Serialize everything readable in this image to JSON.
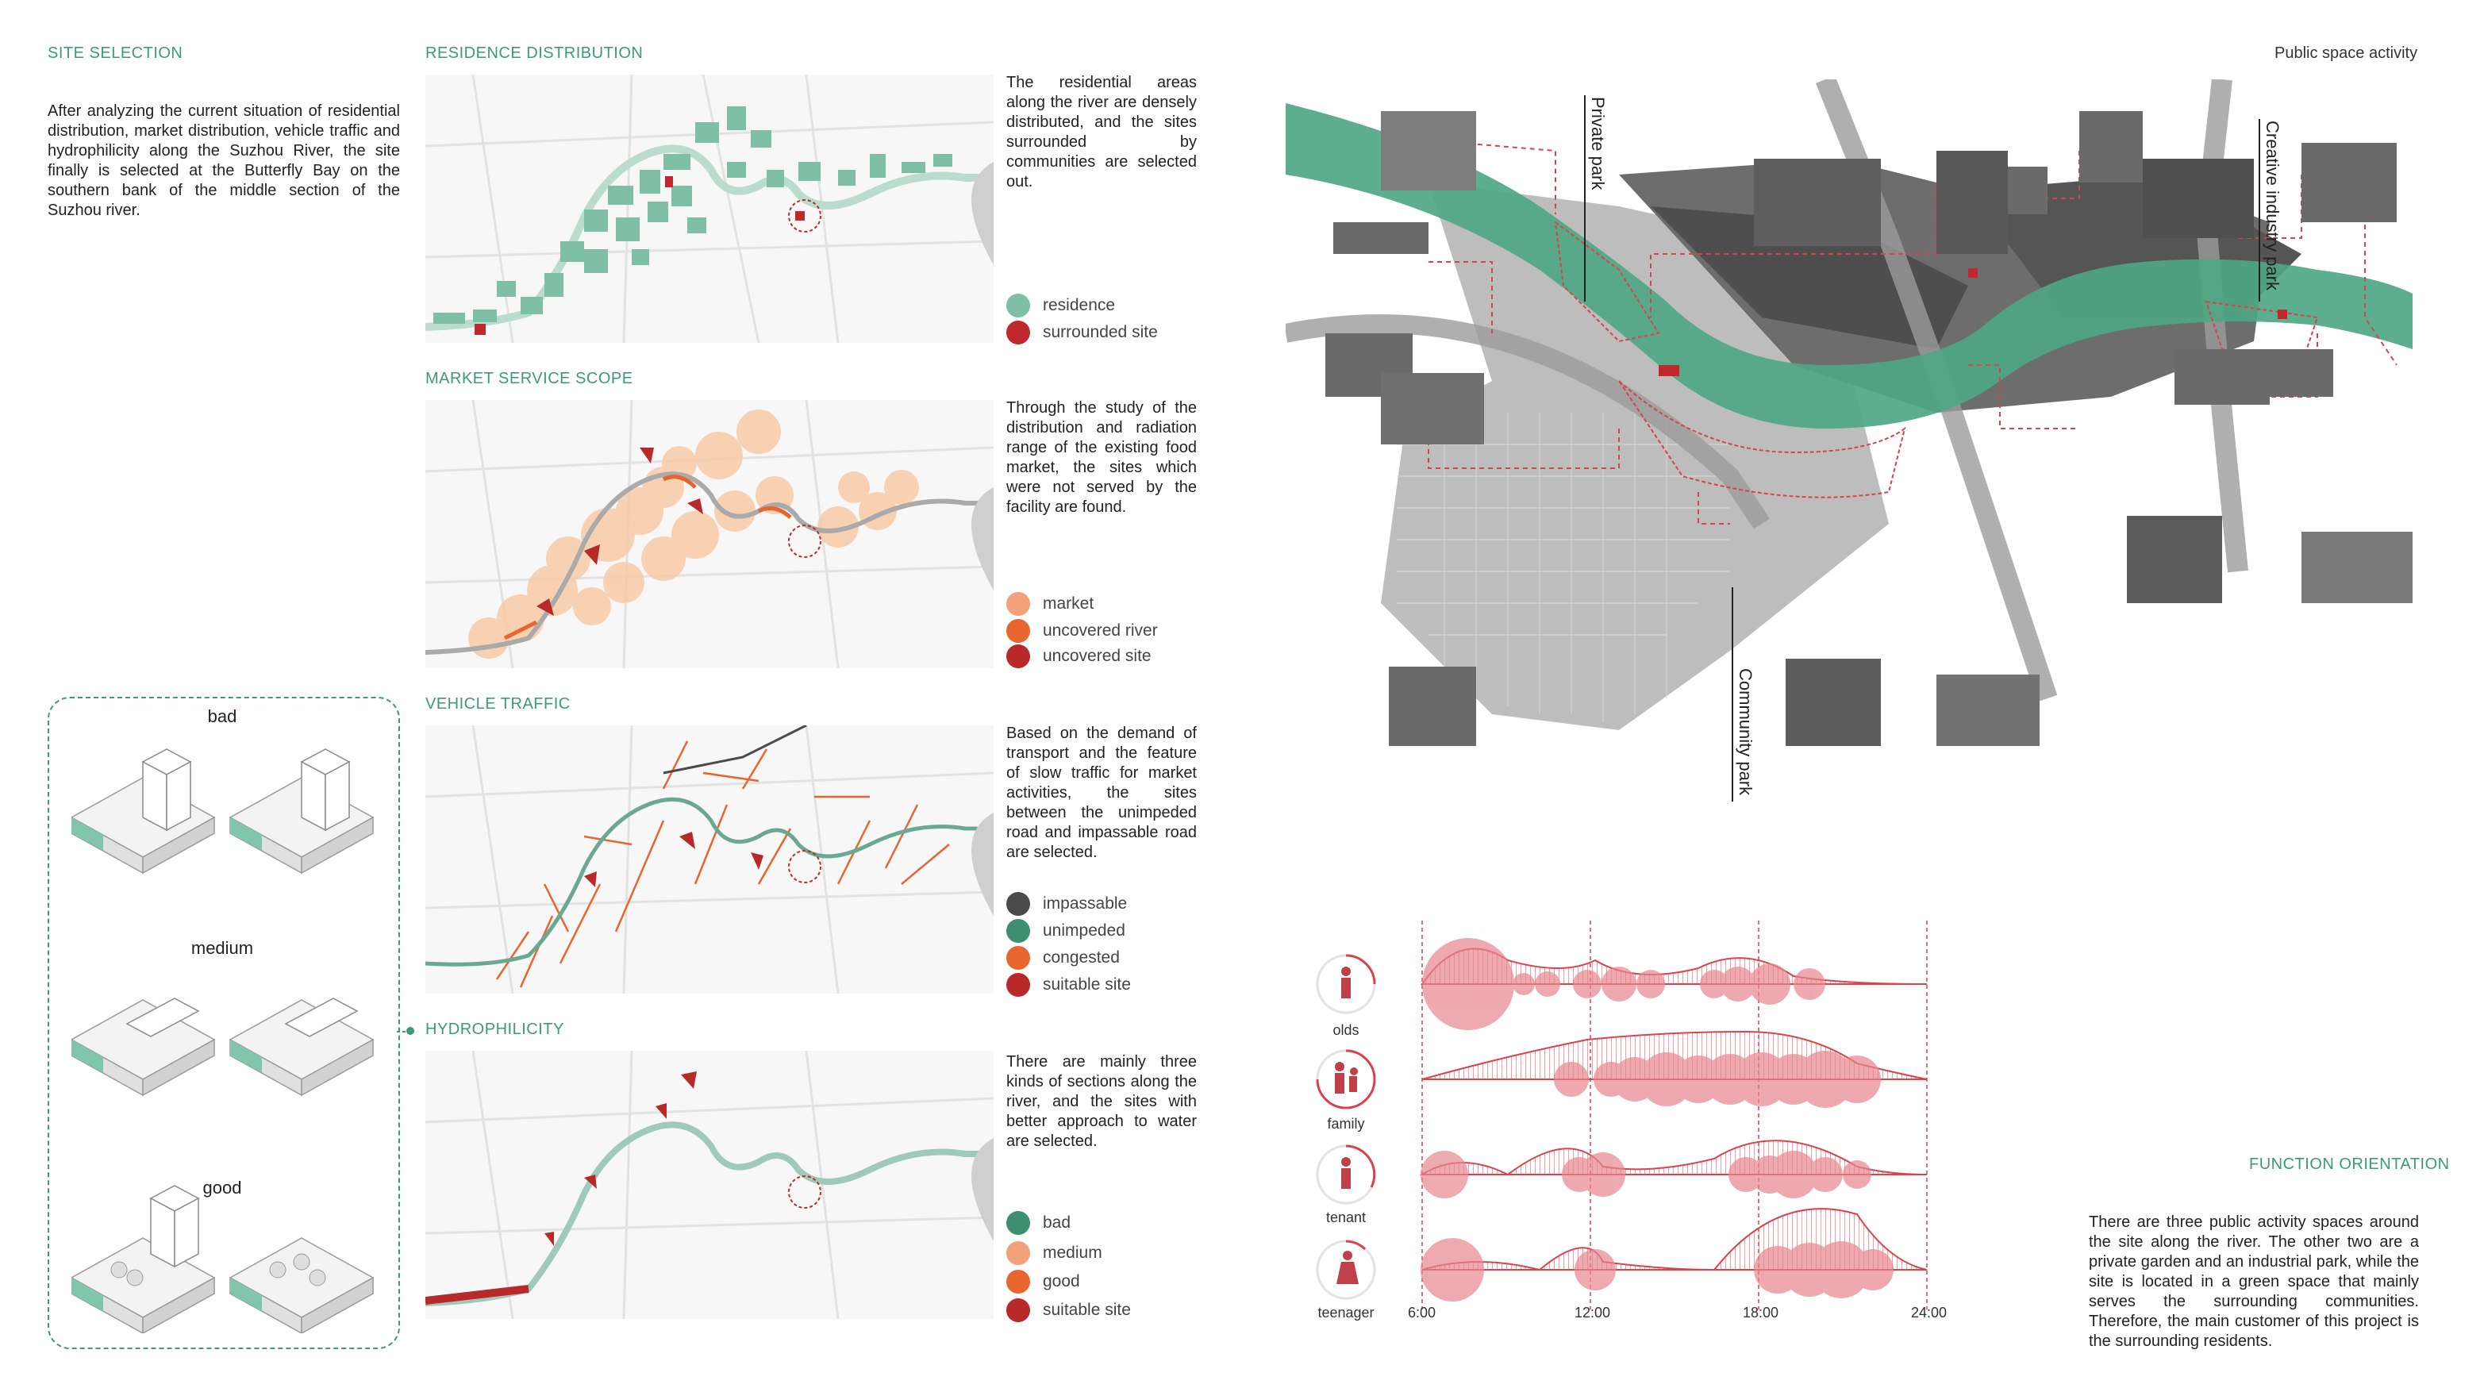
{
  "site_selection": {
    "heading": "SITE SELECTION",
    "text": "After analyzing the current situation of residential distribution, market distribution, vehicle traffic and hydrophilicity along the Suzhou River, the site finally is selected at the Butterfly Bay on the southern bank of the middle section of the Suzhou river."
  },
  "residence": {
    "heading": "RESIDENCE DISTRIBUTION",
    "text": "The residential areas along the river are densely distributed, and the sites surrounded by communities are selected out.",
    "legend": [
      {
        "label": "residence",
        "color": "#7fbfa6"
      },
      {
        "label": "surrounded site",
        "color": "#c0282d"
      }
    ]
  },
  "market": {
    "heading": "MARKET SERVICE SCOPE",
    "text": "Through the study of the distribution and radiation range of the existing food market, the sites which were not served by the facility are found.",
    "legend": [
      {
        "label": "market",
        "color": "#f2a27a"
      },
      {
        "label": "uncovered river",
        "color": "#e8652f"
      },
      {
        "label": "uncovered site",
        "color": "#b82a2a"
      }
    ]
  },
  "traffic": {
    "heading": "VEHICLE TRAFFIC",
    "text": "Based on the demand of transport and the feature of slow traffic for market activities, the sites between the unimpeded road and impassable road are selected.",
    "legend": [
      {
        "label": "impassable",
        "color": "#4a4a4a"
      },
      {
        "label": "unimpeded",
        "color": "#3c8f70"
      },
      {
        "label": "congested",
        "color": "#e8652f"
      },
      {
        "label": "suitable site",
        "color": "#b82a2a"
      }
    ]
  },
  "hydro": {
    "heading": "HYDROPHILICITY",
    "text": "There are mainly three kinds of sections along the river, and the sites with better approach to water are selected.",
    "legend": [
      {
        "label": "bad",
        "color": "#3c8f70"
      },
      {
        "label": "medium",
        "color": "#f2a27a"
      },
      {
        "label": "good",
        "color": "#e8652f"
      },
      {
        "label": "suitable site",
        "color": "#b82a2a"
      }
    ]
  },
  "sections": {
    "bad": "bad",
    "medium": "medium",
    "good": "good"
  },
  "public_space": {
    "title": "Public space activity",
    "labels": {
      "private_park": "Private park",
      "creative_park": "Creative industry park",
      "community_park": "Community park"
    }
  },
  "timeline": {
    "groups": [
      "olds",
      "family",
      "tenant",
      "teenager"
    ],
    "times": [
      "6:00",
      "12:00",
      "18:00",
      "24:00"
    ],
    "color": "#d9434e"
  },
  "function": {
    "heading": "FUNCTION ORIENTATION",
    "text": "There are three public activity spaces around the site along the river. The other two are a private garden and an industrial park, while the site is located in a green space that mainly serves the surrounding communities. Therefore, the main customer of this project is the surrounding residents."
  }
}
